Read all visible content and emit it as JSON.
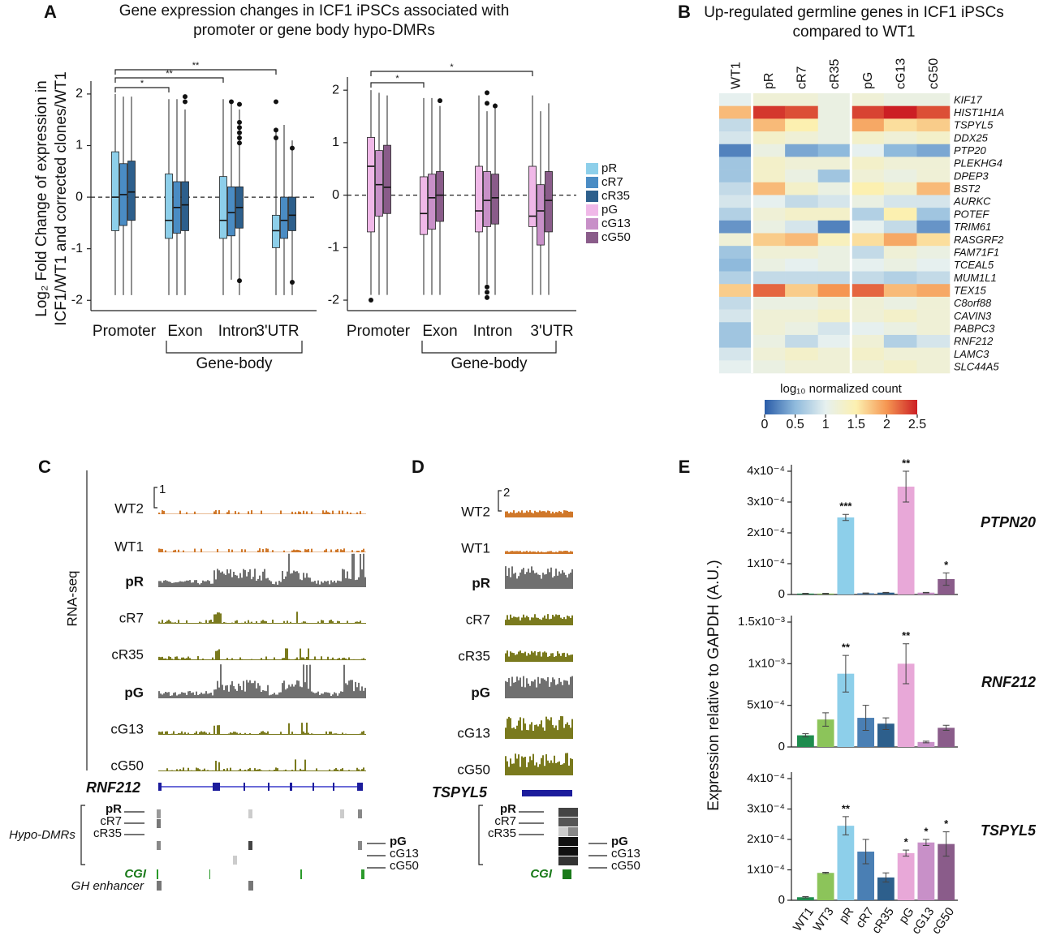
{
  "panel_labels": [
    "A",
    "B",
    "C",
    "D",
    "E"
  ],
  "chart_data": [
    {
      "type": "box",
      "title": [
        "Gene expression changes in ICF1 iPSCs associated with",
        "promoter or gene body hypo-DMRs"
      ],
      "y_label": [
        "Log₂ Fold Change of expression in",
        "ICF1/WT1 and corrected clones/WT1"
      ],
      "categories": [
        "Promoter",
        "Exon",
        "Intron",
        "3'UTR"
      ],
      "group_label": "Gene-body",
      "ylim": [
        -2.2,
        2.25
      ],
      "yticks": [
        -2,
        -1,
        0,
        1,
        2
      ],
      "zero_line": true,
      "significance": [
        "*",
        "**",
        "**"
      ],
      "series": [
        {
          "name": "pR",
          "color": "#8dcfea",
          "whislo": [
            -1.9,
            -1.9,
            -1.9,
            -1.9
          ],
          "q1": [
            -0.65,
            -0.8,
            -0.8,
            -0.98
          ],
          "med": [
            0.0,
            -0.45,
            -0.45,
            -0.65
          ],
          "q3": [
            0.88,
            0.45,
            0.4,
            -0.35
          ],
          "whishi": [
            2.0,
            1.9,
            1.9,
            1.3
          ],
          "outliers": [
            [],
            [],
            [],
            [
              1.85,
              1.3,
              1.15
            ]
          ]
        },
        {
          "name": "cR7",
          "color": "#4a8cc4",
          "whislo": [
            -1.9,
            -1.9,
            -1.6,
            -1.9
          ],
          "q1": [
            -0.55,
            -0.7,
            -0.75,
            -0.8
          ],
          "med": [
            0.05,
            -0.2,
            -0.3,
            -0.45
          ],
          "q3": [
            0.65,
            0.3,
            0.2,
            0.0
          ],
          "whishi": [
            1.95,
            1.9,
            1.85,
            1.4
          ],
          "outliers": [
            [],
            [],
            [
              1.85
            ],
            []
          ]
        },
        {
          "name": "cR35",
          "color": "#2d5f8c",
          "whislo": [
            -1.9,
            -1.9,
            -1.9,
            -1.9
          ],
          "q1": [
            -0.45,
            -0.65,
            -0.6,
            -0.65
          ],
          "med": [
            0.1,
            -0.15,
            -0.2,
            -0.35
          ],
          "q3": [
            0.7,
            0.3,
            0.2,
            0.0
          ],
          "whishi": [
            1.95,
            1.7,
            1.7,
            1.1
          ],
          "outliers": [
            [],
            [
              1.85,
              1.95
            ],
            [
              1.8,
              1.45,
              1.35,
              1.25,
              1.15,
              1.05,
              -1.62
            ],
            [
              0.95,
              -1.65
            ]
          ]
        }
      ]
    },
    {
      "type": "box",
      "categories": [
        "Promoter",
        "Exon",
        "Intron",
        "3'UTR"
      ],
      "group_label": "Gene-body",
      "ylim": [
        -2.2,
        2.25
      ],
      "yticks": [
        -2,
        -1,
        0,
        1,
        2
      ],
      "zero_line": true,
      "significance": [
        "*",
        "*"
      ],
      "series": [
        {
          "name": "pG",
          "color": "#f0b8e8",
          "whislo": [
            -1.9,
            -1.9,
            -1.9,
            -1.9
          ],
          "q1": [
            -0.7,
            -0.75,
            -0.7,
            -0.6
          ],
          "med": [
            0.55,
            -0.35,
            -0.3,
            -0.4
          ],
          "q3": [
            1.1,
            0.35,
            0.55,
            0.55
          ],
          "whishi": [
            2.0,
            1.85,
            1.9,
            1.9
          ],
          "outliers": [
            [
              -2.0
            ],
            [],
            [],
            []
          ]
        },
        {
          "name": "cG13",
          "color": "#c890c8",
          "whislo": [
            -1.9,
            -1.9,
            -1.7,
            -1.9
          ],
          "q1": [
            -0.4,
            -0.65,
            -0.6,
            -0.95
          ],
          "med": [
            0.2,
            -0.05,
            -0.1,
            -0.3
          ],
          "q3": [
            0.85,
            0.4,
            0.45,
            0.2
          ],
          "whishi": [
            1.95,
            1.85,
            1.6,
            1.6
          ],
          "outliers": [
            [],
            [],
            [
              1.95,
              1.75,
              -1.75,
              -1.85,
              -1.95
            ],
            []
          ]
        },
        {
          "name": "cG50",
          "color": "#8a5c8a",
          "whislo": [
            -1.9,
            -1.9,
            -1.9,
            -1.9
          ],
          "q1": [
            -0.35,
            -0.5,
            -0.55,
            -0.7
          ],
          "med": [
            0.15,
            0.0,
            -0.05,
            -0.1
          ],
          "q3": [
            0.95,
            0.45,
            0.4,
            0.45
          ],
          "whishi": [
            1.9,
            1.7,
            1.75,
            1.75
          ],
          "outliers": [
            [],
            [
              1.8
            ],
            [
              1.7
            ],
            []
          ]
        }
      ]
    },
    {
      "type": "heatmap",
      "title": [
        "Up-regulated germline genes in ICF1 iPSCs",
        "compared to WT1"
      ],
      "columns": [
        "WT1",
        "pR",
        "cR7",
        "cR35",
        "pG",
        "cG13",
        "cG50"
      ],
      "rows": [
        "KIF17",
        "HIST1H1A",
        "TSPYL5",
        "DDX25",
        "PTP20",
        "PLEKHG4",
        "DPEP3",
        "BST2",
        "AURKC",
        "POTEF",
        "TRIM61",
        "RASGRF2",
        "FAM71F1",
        "TCEAL5",
        "MUM1L1",
        "TEX15",
        "C8orf88",
        "CAVIN3",
        "PABPC3",
        "RNF212",
        "LAMC3",
        "SLC44A5"
      ],
      "values": [
        [
          1.0,
          1.2,
          1.2,
          1.1,
          1.2,
          1.1,
          1.1
        ],
        [
          1.8,
          2.4,
          2.3,
          1.1,
          2.35,
          2.5,
          2.3
        ],
        [
          0.8,
          1.8,
          1.5,
          1.1,
          1.9,
          1.6,
          1.7
        ],
        [
          0.9,
          1.3,
          1.2,
          1.1,
          1.3,
          1.2,
          1.3
        ],
        [
          0.2,
          1.1,
          0.4,
          0.5,
          1.0,
          0.5,
          0.4
        ],
        [
          0.6,
          1.3,
          1.2,
          1.2,
          1.3,
          1.2,
          1.2
        ],
        [
          0.6,
          1.3,
          1.1,
          0.6,
          1.2,
          1.1,
          1.2
        ],
        [
          0.8,
          1.8,
          1.3,
          1.1,
          1.5,
          1.3,
          1.8
        ],
        [
          0.9,
          1.0,
          0.8,
          0.9,
          1.1,
          0.9,
          0.9
        ],
        [
          0.7,
          1.2,
          1.3,
          1.3,
          0.7,
          1.5,
          0.6
        ],
        [
          0.3,
          1.1,
          0.9,
          0.2,
          1.0,
          0.8,
          0.3
        ],
        [
          1.2,
          1.7,
          1.8,
          1.4,
          1.6,
          1.9,
          1.6
        ],
        [
          0.6,
          1.2,
          1.2,
          1.1,
          0.8,
          1.2,
          1.1
        ],
        [
          0.5,
          1.1,
          1.0,
          1.1,
          1.0,
          1.1,
          1.0
        ],
        [
          0.7,
          0.8,
          0.8,
          0.8,
          0.8,
          0.7,
          0.8
        ],
        [
          1.7,
          2.2,
          1.7,
          2.0,
          2.2,
          1.8,
          1.9
        ],
        [
          0.8,
          1.1,
          1.1,
          1.2,
          1.2,
          1.1,
          1.2
        ],
        [
          0.9,
          1.2,
          1.2,
          1.3,
          1.2,
          1.3,
          1.2
        ],
        [
          0.6,
          1.2,
          1.1,
          0.9,
          1.0,
          1.1,
          1.2
        ],
        [
          0.6,
          1.1,
          0.8,
          1.0,
          1.2,
          0.7,
          0.9
        ],
        [
          0.9,
          1.2,
          1.3,
          1.2,
          1.3,
          1.2,
          1.2
        ],
        [
          1.0,
          1.1,
          1.2,
          1.2,
          1.2,
          1.3,
          1.2
        ]
      ],
      "colorbar_label": "log₁₀ normalized count",
      "zlim": [
        0,
        2.5
      ],
      "zticks": [
        0,
        0.5,
        1,
        1.5,
        2,
        2.5
      ],
      "colormap": [
        "#2a5ca8",
        "#8fbadc",
        "#e6f0ef",
        "#fcf0b0",
        "#f59652",
        "#cc1f24"
      ]
    },
    {
      "type": "bar",
      "y_label": "Expression relative to GAPDH (A.U.)",
      "categories": [
        "WT1",
        "WT3",
        "pR",
        "cR7",
        "cR35",
        "pG",
        "cG13",
        "cG50"
      ],
      "colors": [
        "#1e8c4e",
        "#8cc45a",
        "#8dcfea",
        "#4a7fb4",
        "#2d5f8c",
        "#e8a8d8",
        "#c890c8",
        "#8a5c8a"
      ],
      "panels": [
        {
          "title": "PTPN20",
          "ylim": [
            0,
            0.0004
          ],
          "yticks": [
            0,
            {
              "value": 0.0001,
              "label": "1x10⁻⁴"
            },
            {
              "value": 0.0002,
              "label": "2x10⁻⁴"
            },
            {
              "value": 0.0003,
              "label": "3x10⁻⁴"
            },
            {
              "value": 0.0004,
              "label": "4x10⁻⁴"
            }
          ],
          "values": [
            3e-06,
            3e-06,
            0.00025,
            4e-06,
            6e-06,
            0.00035,
            6e-06,
            5e-05
          ],
          "errors": [
            1e-06,
            1e-06,
            1e-05,
            1e-06,
            1e-06,
            5e-05,
            1e-06,
            2e-05
          ],
          "significance": [
            null,
            null,
            "***",
            null,
            null,
            "**",
            null,
            "*"
          ]
        },
        {
          "title": "RNF212",
          "ylim": [
            0,
            0.0015
          ],
          "yticks": [
            0,
            {
              "value": 0.0005,
              "label": "5x10⁻⁴"
            },
            {
              "value": 0.001,
              "label": "1x10⁻³"
            },
            {
              "value": 0.0015,
              "label": "1.5x10⁻³"
            }
          ],
          "values": [
            0.00014,
            0.00033,
            0.00088,
            0.00035,
            0.00028,
            0.001,
            6e-05,
            0.00023
          ],
          "errors": [
            2e-05,
            8e-05,
            0.00022,
            0.00015,
            7e-05,
            0.00024,
            1e-05,
            3e-05
          ],
          "significance": [
            null,
            null,
            "**",
            null,
            null,
            "**",
            null,
            null
          ]
        },
        {
          "title": "TSPYL5",
          "ylim": [
            0,
            0.0004
          ],
          "yticks": [
            0,
            {
              "value": 0.0001,
              "label": "1x10⁻⁴"
            },
            {
              "value": 0.0002,
              "label": "2x10⁻⁴"
            },
            {
              "value": 0.0003,
              "label": "3x10⁻⁴"
            },
            {
              "value": 0.0004,
              "label": "4x10⁻⁴"
            }
          ],
          "values": [
            1e-05,
            9e-05,
            0.000245,
            0.00016,
            7.5e-05,
            0.000155,
            0.00019,
            0.000185
          ],
          "errors": [
            2e-06,
            2e-06,
            3e-05,
            4e-05,
            1.5e-05,
            1e-05,
            1e-05,
            4e-05
          ],
          "significance": [
            null,
            null,
            "**",
            null,
            null,
            "*",
            "*",
            "*"
          ]
        }
      ]
    }
  ],
  "tracks": [
    {
      "section_label": "RNA-seq",
      "scale": 1,
      "samples": [
        "WT2",
        "WT1",
        "pR",
        "cR7",
        "cR35",
        "pG",
        "cG13",
        "cG50"
      ],
      "gene": "RNF212",
      "dmr_label": "Hypo-DMRs",
      "dmr_left": [
        "pR",
        "cR7",
        "cR35"
      ],
      "dmr_right": [
        "pG",
        "cG13",
        "cG50"
      ],
      "cgi": "CGI",
      "enhancer": "GH enhancer"
    },
    {
      "scale": 2,
      "samples": [
        "WT2",
        "WT1",
        "pR",
        "cR7",
        "cR35",
        "pG",
        "cG13",
        "cG50"
      ],
      "gene": "TSPYL5",
      "dmr_left": [
        "pR",
        "cR7",
        "cR35"
      ],
      "dmr_right": [
        "pG",
        "cG13",
        "cG50"
      ],
      "cgi": "CGI"
    }
  ]
}
